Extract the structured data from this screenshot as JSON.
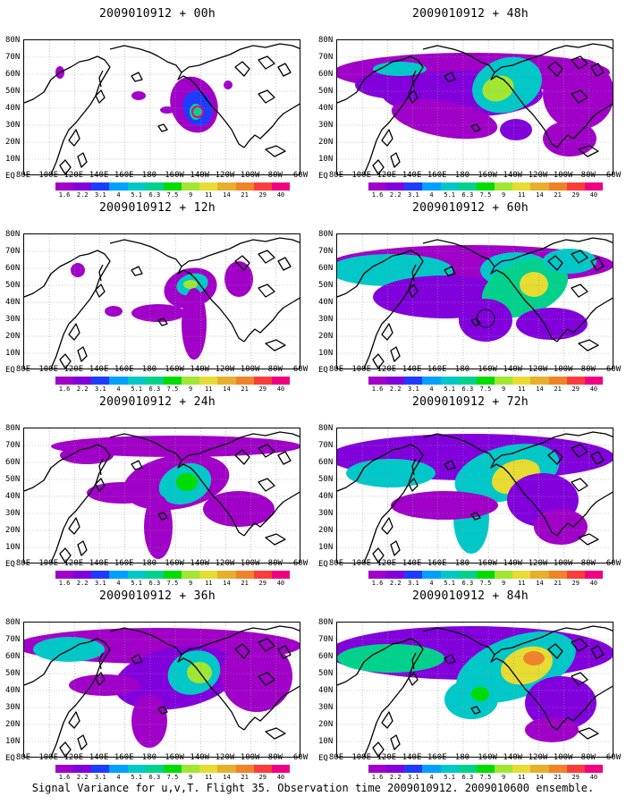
{
  "panels": [
    {
      "title": "2009010912 + 00h"
    },
    {
      "title": "2009010912 + 48h"
    },
    {
      "title": "2009010912 + 12h"
    },
    {
      "title": "2009010912 + 60h"
    },
    {
      "title": "2009010912 + 24h"
    },
    {
      "title": "2009010912 + 72h"
    },
    {
      "title": "2009010912 + 36h"
    },
    {
      "title": "2009010912 + 84h"
    }
  ],
  "lon_labels": [
    "80E",
    "100E",
    "120E",
    "140E",
    "160E",
    "180",
    "160W",
    "140W",
    "120W",
    "100W",
    "80W",
    "60W"
  ],
  "lat_labels": [
    "80N",
    "70N",
    "60N",
    "50N",
    "40N",
    "30N",
    "20N",
    "10N",
    "EQ"
  ],
  "colorbar": {
    "labels": [
      "1.6",
      "2.2",
      "3.1",
      "4",
      "5.1",
      "6.3",
      "7.5",
      "9",
      "11",
      "14",
      "21",
      "29",
      "40"
    ],
    "colors": [
      "#a000c8",
      "#8200dc",
      "#1e3cff",
      "#00a0ff",
      "#00c8c8",
      "#00d28c",
      "#00dc00",
      "#a0e632",
      "#e6dc32",
      "#e6af2d",
      "#f08228",
      "#fa3c3c",
      "#f00082"
    ]
  },
  "caption": "Signal Variance for u,v,T. Flight 35. Observation time 2009010912. 2009010600 ensemble."
}
